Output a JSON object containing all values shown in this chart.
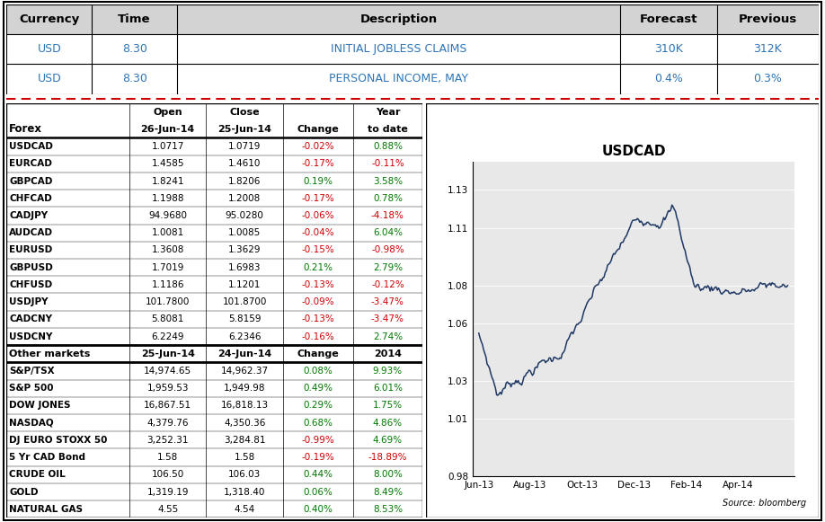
{
  "top_table": {
    "headers": [
      "Currency",
      "Time",
      "Description",
      "Forecast",
      "Previous"
    ],
    "rows": [
      [
        "USD",
        "8.30",
        "INITIAL JOBLESS CLAIMS",
        "310K",
        "312K"
      ],
      [
        "USD",
        "8.30",
        "PERSONAL INCOME, MAY",
        "0.4%",
        "0.3%"
      ]
    ]
  },
  "forex_table": {
    "header_col1": "Forex",
    "header_row1": [
      "Open",
      "Close",
      "",
      "Year"
    ],
    "header_row2": [
      "26-Jun-14",
      "25-Jun-14",
      "Change",
      "to date"
    ],
    "rows": [
      [
        "USDCAD",
        "1.0717",
        "1.0719",
        "-0.02%",
        "0.88%"
      ],
      [
        "EURCAD",
        "1.4585",
        "1.4610",
        "-0.17%",
        "-0.11%"
      ],
      [
        "GBPCAD",
        "1.8241",
        "1.8206",
        "0.19%",
        "3.58%"
      ],
      [
        "CHFCAD",
        "1.1988",
        "1.2008",
        "-0.17%",
        "0.78%"
      ],
      [
        "CADJPY",
        "94.9680",
        "95.0280",
        "-0.06%",
        "-4.18%"
      ],
      [
        "AUDCAD",
        "1.0081",
        "1.0085",
        "-0.04%",
        "6.04%"
      ],
      [
        "EURUSD",
        "1.3608",
        "1.3629",
        "-0.15%",
        "-0.98%"
      ],
      [
        "GBPUSD",
        "1.7019",
        "1.6983",
        "0.21%",
        "2.79%"
      ],
      [
        "CHFUSD",
        "1.1186",
        "1.1201",
        "-0.13%",
        "-0.12%"
      ],
      [
        "USDJPY",
        "101.7800",
        "101.8700",
        "-0.09%",
        "-3.47%"
      ],
      [
        "CADCNY",
        "5.8081",
        "5.8159",
        "-0.13%",
        "-3.47%"
      ],
      [
        "USDCNY",
        "6.2249",
        "6.2346",
        "-0.16%",
        "2.74%"
      ]
    ]
  },
  "other_table": {
    "headers": [
      "Other markets",
      "25-Jun-14",
      "24-Jun-14",
      "Change",
      "2014"
    ],
    "rows": [
      [
        "S&P/TSX",
        "14,974.65",
        "14,962.37",
        "0.08%",
        "9.93%"
      ],
      [
        "S&P 500",
        "1,959.53",
        "1,949.98",
        "0.49%",
        "6.01%"
      ],
      [
        "DOW JONES",
        "16,867.51",
        "16,818.13",
        "0.29%",
        "1.75%"
      ],
      [
        "NASDAQ",
        "4,379.76",
        "4,350.36",
        "0.68%",
        "4.86%"
      ],
      [
        "DJ EURO STOXX 50",
        "3,252.31",
        "3,284.81",
        "-0.99%",
        "4.69%"
      ],
      [
        "5 Yr CAD Bond",
        "1.58",
        "1.58",
        "-0.19%",
        "-18.89%"
      ],
      [
        "CRUDE OIL",
        "106.50",
        "106.03",
        "0.44%",
        "8.00%"
      ],
      [
        "GOLD",
        "1,319.19",
        "1,318.40",
        "0.06%",
        "8.49%"
      ],
      [
        "NATURAL GAS",
        "4.55",
        "4.54",
        "0.40%",
        "8.53%"
      ]
    ]
  },
  "chart": {
    "title": "USDCAD",
    "ylim": [
      0.98,
      1.145
    ],
    "yticks": [
      0.98,
      1.01,
      1.03,
      1.06,
      1.08,
      1.11,
      1.13
    ],
    "month_ticks": [
      0,
      43,
      87,
      130,
      174,
      217
    ],
    "month_labels": [
      "Jun-13",
      "Aug-13",
      "Oct-13",
      "Dec-13",
      "Feb-14",
      "Apr-14"
    ],
    "source": "Source: bloomberg",
    "line_color": "#1f3864",
    "bg_color": "#e8e8e8"
  },
  "header_bg": "#d3d3d3",
  "cell_text_blue": "#2f75b6",
  "change_neg": "#cc0000",
  "change_pos": "#007700",
  "dashed_red": "#cc0000"
}
